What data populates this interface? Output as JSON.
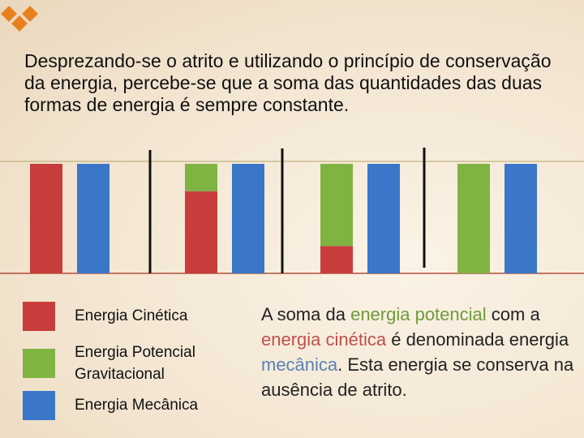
{
  "intro": "Desprezando-se o atrito e utilizando o princípio de conservação da energia, percebe-se que a soma das quantidades das duas formas de energia é sempre constante.",
  "chart_data": {
    "type": "bar",
    "categories": [
      null,
      null,
      null,
      null
    ],
    "series": [
      {
        "name": "Energia Cinética",
        "color": "#c83c3c",
        "values": [
          100,
          75,
          25,
          0
        ]
      },
      {
        "name": "Energia Potencial Gravitacional",
        "color": "#7fb443",
        "values": [
          0,
          25,
          75,
          100
        ]
      },
      {
        "name": "Energia Mecânica",
        "color": "#3a77c8",
        "values": [
          100,
          100,
          100,
          100
        ]
      }
    ],
    "ylim": [
      0,
      100
    ]
  },
  "note": [
    {
      "text": "A soma da "
    },
    {
      "text": "energia potencial",
      "color": "#6f9a3c"
    },
    {
      "text": " com a "
    },
    {
      "text": "energia cinética",
      "color": "#c0504d"
    },
    {
      "text": " é denominada energia "
    },
    {
      "text": "mecânica",
      "color": "#5a82b8"
    },
    {
      "text": ". Esta energia se conserva na ausência de atrito."
    }
  ]
}
